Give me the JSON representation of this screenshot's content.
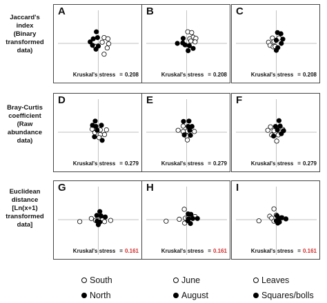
{
  "row_labels": [
    "Jaccard's\nindex\n(Binary\ntransformed\ndata)",
    "Bray-Curtis\ncoefficient\n(Raw\nabundance\ndata)",
    "Euclidean\ndistance\n[Ln(x+1)\ntransformed\ndata]"
  ],
  "stress_prefix": "Kruskal's stress",
  "stress_sep": "=",
  "legend": [
    {
      "label": "South",
      "marker": "open"
    },
    {
      "label": "North",
      "marker": "filled"
    },
    {
      "label": "June",
      "marker": "open"
    },
    {
      "label": "August",
      "marker": "filled"
    },
    {
      "label": "Leaves",
      "marker": "open"
    },
    {
      "label": "Squares/bolls",
      "marker": "filled"
    }
  ],
  "colors": {
    "open_fill": "#ffffff",
    "filled_fill": "#000000",
    "stroke": "#000000",
    "axis": "#aaaaaa",
    "red_stress": "#d42a2a"
  },
  "chart_data": [
    {
      "type": "scatter",
      "letter": "A",
      "stress": "0.208",
      "stress_red": false,
      "xlim": [
        -1,
        1
      ],
      "ylim": [
        -1,
        1
      ],
      "series": [
        {
          "marker": "open",
          "points": [
            [
              0.15,
              0.15
            ],
            [
              0.25,
              0.12
            ],
            [
              0.1,
              0.03
            ],
            [
              0.27,
              -0.01
            ],
            [
              -0.08,
              -0.08
            ],
            [
              0.23,
              -0.12
            ],
            [
              0.15,
              -0.28
            ]
          ]
        },
        {
          "marker": "filled",
          "points": [
            [
              -0.05,
              0.3
            ],
            [
              -0.02,
              0.15
            ],
            [
              -0.13,
              0.12
            ],
            [
              -0.21,
              0.04
            ],
            [
              -0.15,
              -0.05
            ],
            [
              0.0,
              -0.07
            ],
            [
              -0.06,
              -0.15
            ]
          ]
        }
      ]
    },
    {
      "type": "scatter",
      "letter": "B",
      "stress": "0.208",
      "stress_red": false,
      "xlim": [
        -1,
        1
      ],
      "ylim": [
        -1,
        1
      ],
      "series": [
        {
          "marker": "open",
          "points": [
            [
              0.03,
              0.3
            ],
            [
              0.13,
              0.28
            ],
            [
              0.17,
              0.16
            ],
            [
              0.08,
              0.12
            ],
            [
              0.24,
              0.13
            ],
            [
              0.11,
              0.06
            ],
            [
              0.22,
              0.04
            ]
          ]
        },
        {
          "marker": "filled",
          "points": [
            [
              -0.09,
              0.13
            ],
            [
              -0.24,
              0.0
            ],
            [
              -0.1,
              0.01
            ],
            [
              -0.04,
              -0.04
            ],
            [
              0.07,
              -0.06
            ],
            [
              0.17,
              -0.13
            ],
            [
              0.04,
              -0.19
            ]
          ]
        }
      ]
    },
    {
      "type": "scatter",
      "letter": "C",
      "stress": "0.208",
      "stress_red": false,
      "xlim": [
        -1,
        1
      ],
      "ylim": [
        -1,
        1
      ],
      "series": [
        {
          "marker": "open",
          "points": [
            [
              -0.1,
              0.14
            ],
            [
              0.07,
              0.14
            ],
            [
              -0.2,
              0.03
            ],
            [
              -0.06,
              0.05
            ],
            [
              -0.16,
              -0.05
            ],
            [
              -0.08,
              -0.09
            ],
            [
              -0.03,
              -0.08
            ]
          ]
        },
        {
          "marker": "filled",
          "points": [
            [
              0.03,
              0.28
            ],
            [
              0.12,
              0.25
            ],
            [
              0.0,
              0.08
            ],
            [
              0.17,
              0.11
            ],
            [
              0.13,
              0.0
            ],
            [
              0.04,
              -0.11
            ],
            [
              0.0,
              -0.18
            ]
          ]
        }
      ]
    },
    {
      "type": "scatter",
      "letter": "D",
      "stress": "0.279",
      "stress_red": false,
      "xlim": [
        -1,
        1
      ],
      "ylim": [
        -1,
        1
      ],
      "series": [
        {
          "marker": "open",
          "points": [
            [
              -0.16,
              0.08
            ],
            [
              0.05,
              0.06
            ],
            [
              0.21,
              0.06
            ],
            [
              -0.09,
              -0.01
            ],
            [
              0.05,
              -0.06
            ],
            [
              0.16,
              -0.06
            ],
            [
              0.02,
              -0.14
            ]
          ]
        },
        {
          "marker": "filled",
          "points": [
            [
              -0.08,
              0.29
            ],
            [
              -0.15,
              0.18
            ],
            [
              -0.06,
              0.15
            ],
            [
              0.08,
              0.18
            ],
            [
              -0.03,
              0.05
            ],
            [
              -0.1,
              -0.12
            ],
            [
              0.1,
              -0.21
            ]
          ]
        }
      ]
    },
    {
      "type": "scatter",
      "letter": "E",
      "stress": "0.279",
      "stress_red": false,
      "xlim": [
        -1,
        1
      ],
      "ylim": [
        -1,
        1
      ],
      "series": [
        {
          "marker": "open",
          "points": [
            [
              -0.09,
              0.16
            ],
            [
              -0.22,
              0.05
            ],
            [
              -0.09,
              0.02
            ],
            [
              0.02,
              0.03
            ],
            [
              0.2,
              0.02
            ],
            [
              0.0,
              -0.1
            ],
            [
              0.02,
              -0.2
            ]
          ]
        },
        {
          "marker": "filled",
          "points": [
            [
              -0.08,
              0.28
            ],
            [
              0.06,
              0.29
            ],
            [
              0.04,
              0.15
            ],
            [
              0.14,
              0.15
            ],
            [
              0.08,
              0.05
            ],
            [
              -0.06,
              -0.07
            ],
            [
              0.1,
              -0.08
            ]
          ]
        }
      ]
    },
    {
      "type": "scatter",
      "letter": "F",
      "stress": "0.279",
      "stress_red": false,
      "xlim": [
        -1,
        1
      ],
      "ylim": [
        -1,
        1
      ],
      "series": [
        {
          "marker": "open",
          "points": [
            [
              -0.15,
              0.14
            ],
            [
              -0.22,
              0.05
            ],
            [
              -0.06,
              0.04
            ],
            [
              0.17,
              0.07
            ],
            [
              -0.12,
              -0.07
            ],
            [
              0.05,
              -0.07
            ],
            [
              0.01,
              -0.23
            ]
          ]
        },
        {
          "marker": "filled",
          "points": [
            [
              0.07,
              0.3
            ],
            [
              -0.02,
              0.15
            ],
            [
              0.1,
              0.16
            ],
            [
              0.03,
              0.06
            ],
            [
              0.19,
              0.04
            ],
            [
              0.13,
              -0.04
            ],
            [
              -0.07,
              -0.1
            ]
          ]
        }
      ]
    },
    {
      "type": "scatter",
      "letter": "G",
      "stress": "0.161",
      "stress_red": true,
      "xlim": [
        -1,
        1
      ],
      "ylim": [
        -1,
        1
      ],
      "series": [
        {
          "marker": "open",
          "points": [
            [
              -0.48,
              -0.05
            ],
            [
              -0.18,
              0.03
            ],
            [
              -0.07,
              -0.02
            ],
            [
              0.02,
              -0.02
            ],
            [
              0.1,
              -0.01
            ],
            [
              0.32,
              -0.02
            ],
            [
              0.16,
              -0.05
            ]
          ]
        },
        {
          "marker": "filled",
          "points": [
            [
              0.04,
              0.21
            ],
            [
              -0.04,
              0.11
            ],
            [
              0.07,
              0.1
            ],
            [
              0.18,
              0.07
            ],
            [
              -0.03,
              -0.04
            ],
            [
              0.04,
              -0.06
            ],
            [
              0.0,
              -0.13
            ]
          ]
        }
      ]
    },
    {
      "type": "scatter",
      "letter": "H",
      "stress": "0.161",
      "stress_red": true,
      "xlim": [
        -1,
        1
      ],
      "ylim": [
        -1,
        1
      ],
      "series": [
        {
          "marker": "open",
          "points": [
            [
              -0.06,
              0.27
            ],
            [
              -0.53,
              -0.04
            ],
            [
              -0.19,
              0.01
            ],
            [
              -0.03,
              0.04
            ],
            [
              0.04,
              0.05
            ],
            [
              0.22,
              0.08
            ],
            [
              -0.05,
              -0.09
            ]
          ]
        },
        {
          "marker": "filled",
          "points": [
            [
              0.04,
              0.15
            ],
            [
              0.11,
              0.14
            ],
            [
              0.05,
              0.02
            ],
            [
              0.16,
              0.03
            ],
            [
              0.28,
              0.03
            ],
            [
              0.03,
              -0.03
            ],
            [
              0.1,
              -0.1
            ]
          ]
        }
      ]
    },
    {
      "type": "scatter",
      "letter": "I",
      "stress": "0.161",
      "stress_red": true,
      "xlim": [
        -1,
        1
      ],
      "ylim": [
        -1,
        1
      ],
      "series": [
        {
          "marker": "open",
          "points": [
            [
              -0.06,
              0.28
            ],
            [
              -0.17,
              0.09
            ],
            [
              0.0,
              0.12
            ],
            [
              -0.12,
              0.04
            ],
            [
              -0.06,
              -0.04
            ],
            [
              -0.45,
              -0.03
            ],
            [
              0.15,
              0.05
            ]
          ]
        },
        {
          "marker": "filled",
          "points": [
            [
              0.02,
              0.1
            ],
            [
              0.06,
              0.04
            ],
            [
              0.13,
              0.05
            ],
            [
              0.25,
              0.02
            ],
            [
              0.0,
              -0.03
            ],
            [
              0.08,
              -0.06
            ],
            [
              0.04,
              -0.09
            ]
          ]
        }
      ]
    }
  ]
}
